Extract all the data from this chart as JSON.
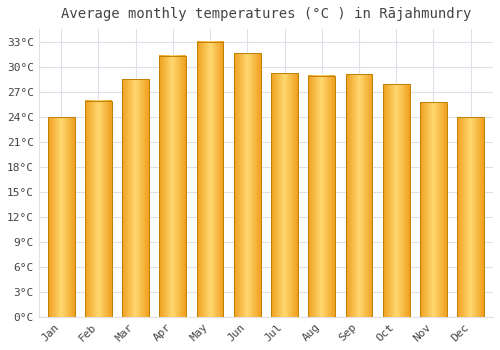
{
  "title": "Average monthly temperatures (°C ) in Rājahmundry",
  "months": [
    "Jan",
    "Feb",
    "Mar",
    "Apr",
    "May",
    "Jun",
    "Jul",
    "Aug",
    "Sep",
    "Oct",
    "Nov",
    "Dec"
  ],
  "temperatures": [
    23.9,
    25.9,
    28.5,
    31.3,
    33.0,
    31.6,
    29.2,
    28.9,
    29.1,
    27.9,
    25.7,
    23.9
  ],
  "bar_color_light": "#FFD060",
  "bar_color_dark": "#F0A020",
  "bar_edge_color": "#C08000",
  "background_color": "#FFFFFF",
  "plot_bg_color": "#FFFFFF",
  "grid_color": "#E0E0E8",
  "text_color": "#444444",
  "ylim": [
    0,
    34.5
  ],
  "yticks": [
    0,
    3,
    6,
    9,
    12,
    15,
    18,
    21,
    24,
    27,
    30,
    33
  ],
  "title_fontsize": 10,
  "tick_fontsize": 8
}
